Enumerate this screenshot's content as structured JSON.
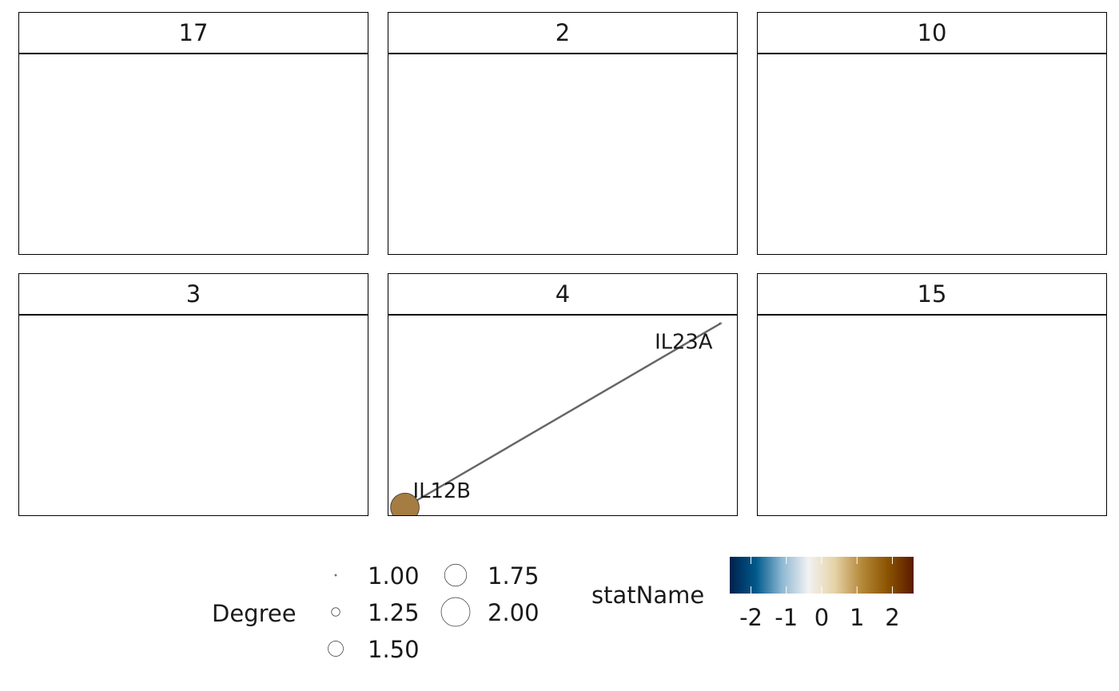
{
  "chart_data": {
    "type": "network",
    "facets": [
      {
        "label": "17",
        "nodes": [],
        "edges": []
      },
      {
        "label": "2",
        "nodes": [],
        "edges": []
      },
      {
        "label": "10",
        "nodes": [],
        "edges": []
      },
      {
        "label": "3",
        "nodes": [],
        "edges": []
      },
      {
        "label": "4",
        "nodes": [
          {
            "name": "IL23A",
            "x": 0.95,
            "y": 0.95,
            "degree": 1.0,
            "stat": 0
          },
          {
            "name": "IL12B",
            "x": 0.05,
            "y": 0.05,
            "degree": 2.0,
            "stat": 1.5
          }
        ],
        "edges": [
          {
            "from": "IL12B",
            "to": "IL23A"
          }
        ]
      },
      {
        "label": "15",
        "nodes": [],
        "edges": []
      }
    ],
    "size_legend": {
      "title": "Degree",
      "breaks": [
        "1.00",
        "1.25",
        "1.50",
        "1.75",
        "2.00"
      ]
    },
    "color_legend": {
      "title": "statName",
      "ticks": [
        "-2",
        "-1",
        "0",
        "1",
        "2"
      ],
      "range": [
        -2.6,
        2.6
      ],
      "palette": [
        "#00204d",
        "#005a8c",
        "#8fb8d3",
        "#f2f2f2",
        "#e6d2a6",
        "#b58a3c",
        "#8c5400",
        "#5a1a00"
      ]
    },
    "edge_color": "#666666",
    "node_fill_example": "#a57c42"
  }
}
